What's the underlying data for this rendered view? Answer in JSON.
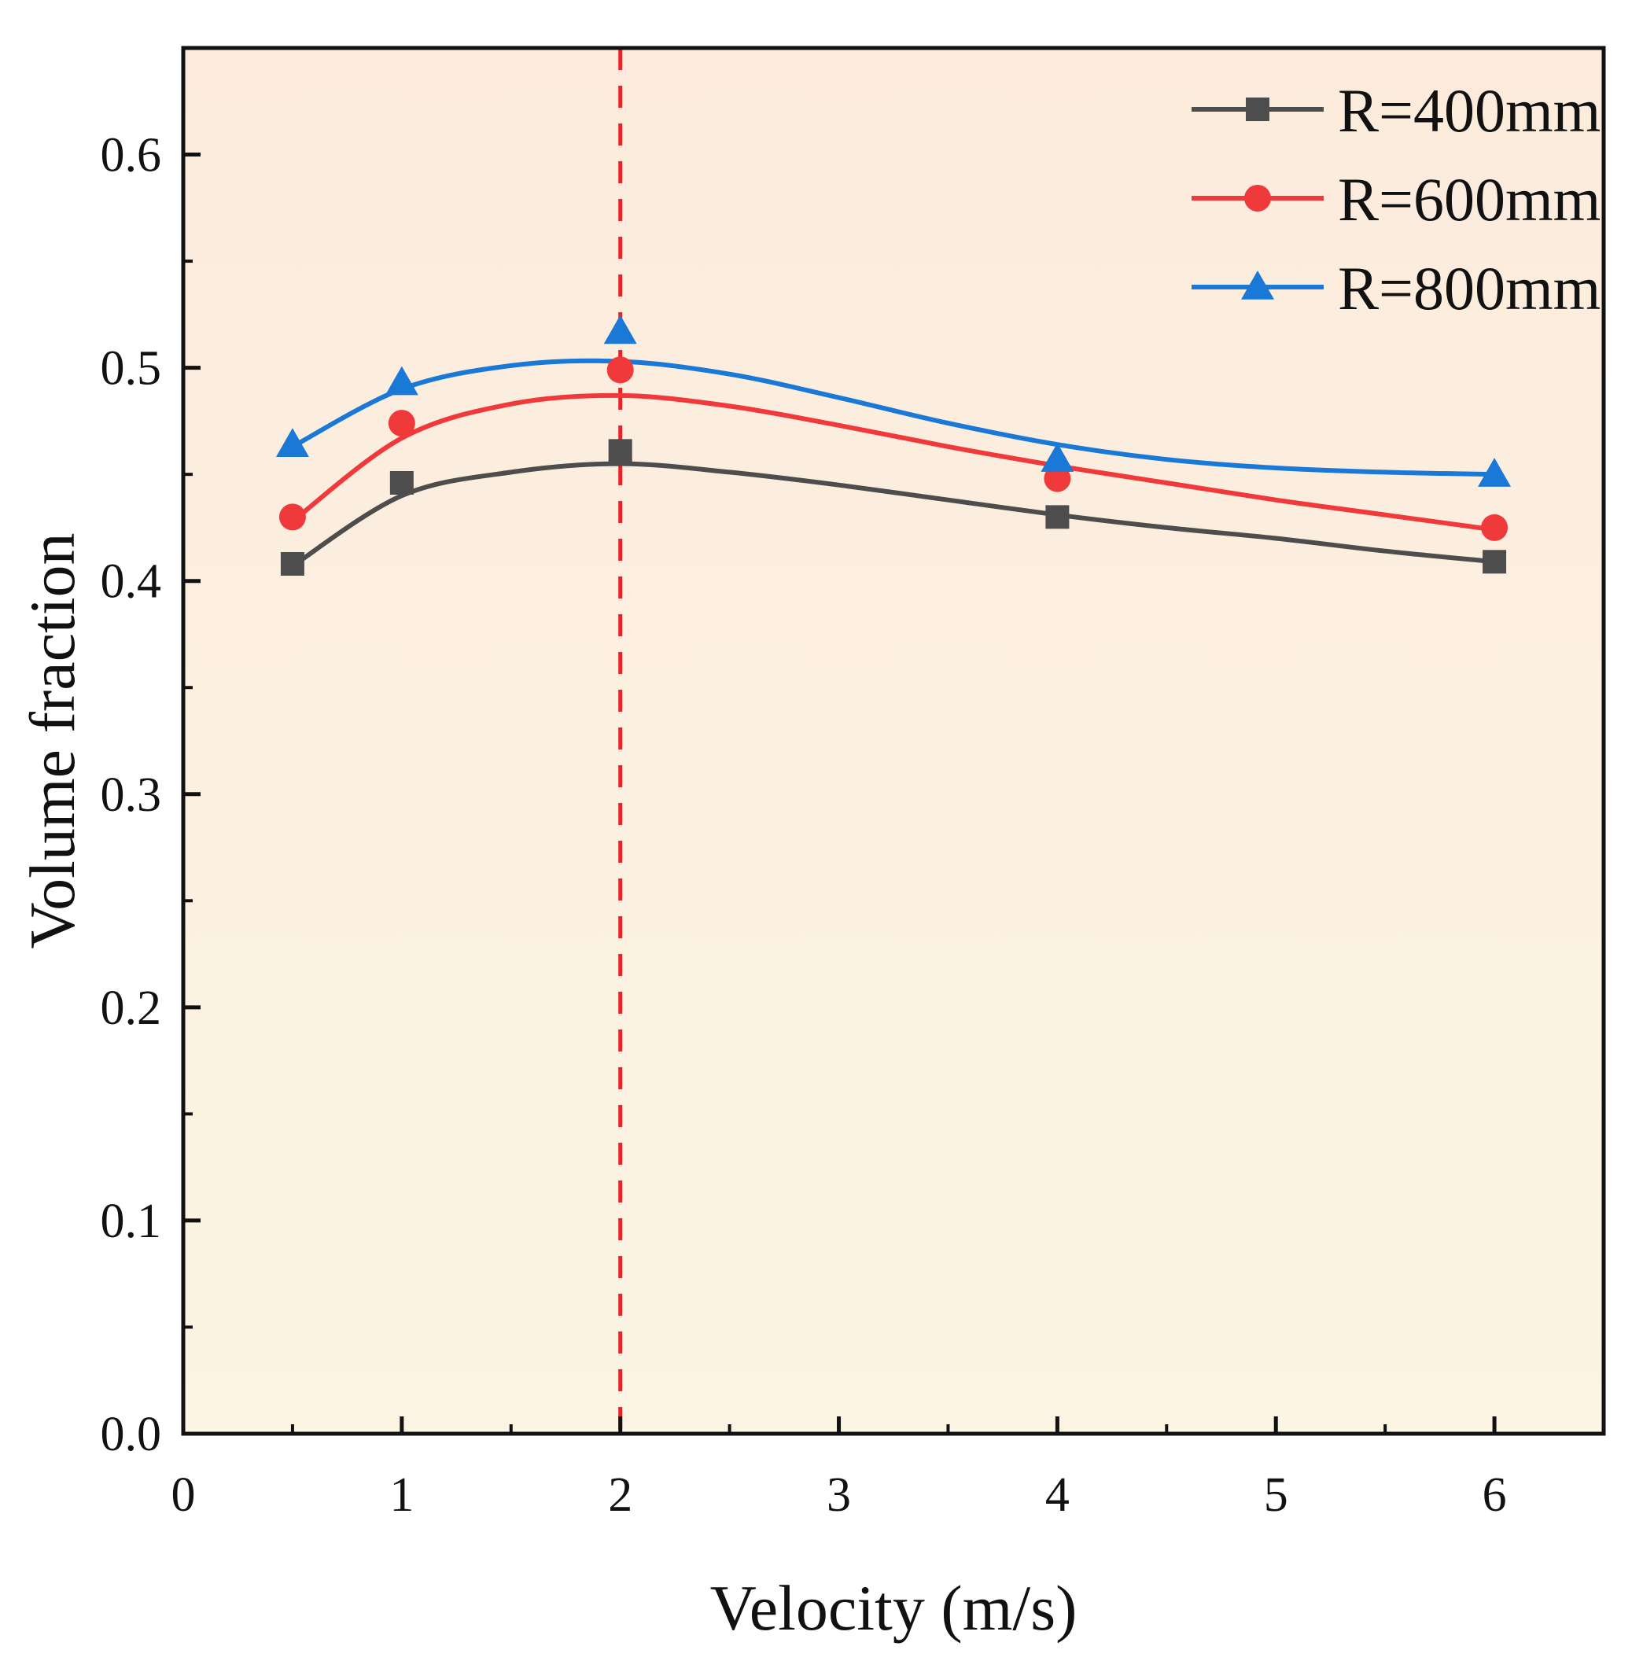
{
  "chart_data": {
    "type": "line",
    "title": "",
    "xlabel": "Velocity (m/s)",
    "ylabel": "Volume fraction",
    "xlim": [
      0,
      6.5
    ],
    "ylim": [
      0.0,
      0.65
    ],
    "x_ticks": [
      0,
      1,
      2,
      3,
      4,
      5,
      6
    ],
    "x_tick_labels": [
      "0",
      "1",
      "2",
      "3",
      "4",
      "5",
      "6"
    ],
    "y_ticks": [
      0.0,
      0.1,
      0.2,
      0.3,
      0.4,
      0.5,
      0.6
    ],
    "y_tick_labels": [
      "0.0",
      "0.1",
      "0.2",
      "0.3",
      "0.4",
      "0.5",
      "0.6"
    ],
    "grid": false,
    "legend_position": "top-right",
    "reference_line": {
      "orientation": "vertical",
      "x": 2,
      "color": "#e8242b",
      "style": "dashed"
    },
    "background_gradient": {
      "top": "#fcebdc",
      "bottom": "#fcf5e3"
    },
    "series": [
      {
        "name": "R=400mm",
        "marker": "square",
        "color": "#4d4d4d",
        "x": [
          0.5,
          1,
          2,
          4,
          6
        ],
        "values": [
          0.408,
          0.446,
          0.461,
          0.43,
          0.409
        ],
        "fit_x": [
          0.5,
          1,
          1.5,
          2,
          2.5,
          3,
          3.5,
          4,
          4.5,
          5,
          5.5,
          6
        ],
        "fit_values": [
          0.407,
          0.44,
          0.451,
          0.455,
          0.451,
          0.445,
          0.438,
          0.431,
          0.425,
          0.42,
          0.414,
          0.409
        ]
      },
      {
        "name": "R=600mm",
        "marker": "circle",
        "color": "#f0393b",
        "x": [
          0.5,
          1,
          2,
          4,
          6
        ],
        "values": [
          0.43,
          0.474,
          0.499,
          0.448,
          0.425
        ],
        "fit_x": [
          0.5,
          1,
          1.5,
          2,
          2.5,
          3,
          3.5,
          4,
          4.5,
          5,
          5.5,
          6
        ],
        "fit_values": [
          0.428,
          0.467,
          0.483,
          0.487,
          0.482,
          0.473,
          0.463,
          0.454,
          0.446,
          0.438,
          0.431,
          0.424
        ]
      },
      {
        "name": "R=800mm",
        "marker": "triangle",
        "color": "#1a78d6",
        "x": [
          0.5,
          1,
          2,
          4,
          6
        ],
        "values": [
          0.464,
          0.493,
          0.517,
          0.457,
          0.45
        ],
        "fit_x": [
          0.5,
          1,
          1.5,
          2,
          2.5,
          3,
          3.5,
          4,
          4.5,
          5,
          5.5,
          6
        ],
        "fit_values": [
          0.463,
          0.49,
          0.501,
          0.503,
          0.497,
          0.486,
          0.474,
          0.464,
          0.457,
          0.453,
          0.451,
          0.45
        ]
      }
    ]
  }
}
